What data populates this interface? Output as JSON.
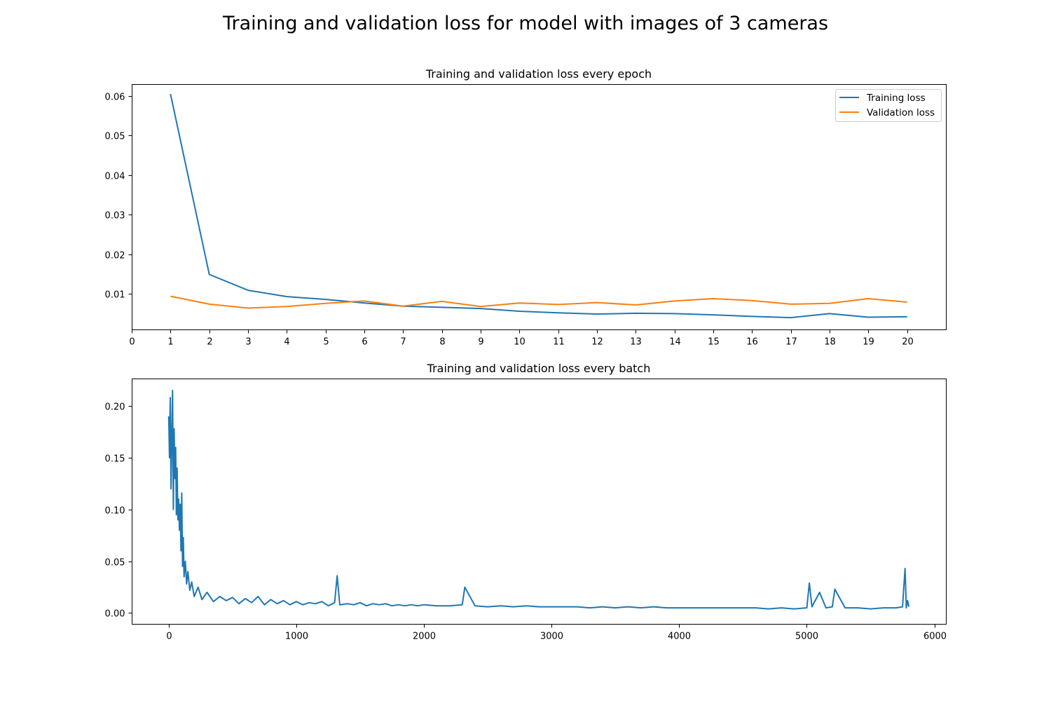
{
  "figure": {
    "title": "Training and validation loss for model with images of 3 cameras"
  },
  "chart_data": [
    {
      "type": "line",
      "title": "Training and validation loss every epoch",
      "xlabel": "",
      "ylabel": "",
      "xlim": [
        0,
        21
      ],
      "ylim": [
        0.001,
        0.063
      ],
      "xticks": [
        0,
        1,
        2,
        3,
        4,
        5,
        6,
        7,
        8,
        9,
        10,
        11,
        12,
        13,
        14,
        15,
        16,
        17,
        18,
        19,
        20
      ],
      "yticks": [
        0.01,
        0.02,
        0.03,
        0.04,
        0.05,
        0.06
      ],
      "ytick_labels": [
        "0.01",
        "0.02",
        "0.03",
        "0.04",
        "0.05",
        "0.06"
      ],
      "grid": false,
      "legend": "top-right",
      "x": [
        1,
        2,
        3,
        4,
        5,
        6,
        7,
        8,
        9,
        10,
        11,
        12,
        13,
        14,
        15,
        16,
        17,
        18,
        19,
        20
      ],
      "series": [
        {
          "name": "Training loss",
          "color": "#1f77b4",
          "values": [
            0.0605,
            0.0149,
            0.0109,
            0.0093,
            0.0086,
            0.0077,
            0.0069,
            0.0066,
            0.0063,
            0.0056,
            0.0052,
            0.0049,
            0.0051,
            0.005,
            0.0047,
            0.0043,
            0.004,
            0.005,
            0.0041,
            0.0042
          ]
        },
        {
          "name": "Validation loss",
          "color": "#ff7f0e",
          "values": [
            0.0094,
            0.0074,
            0.0064,
            0.0068,
            0.0076,
            0.0082,
            0.0069,
            0.0081,
            0.0068,
            0.0077,
            0.0073,
            0.0078,
            0.0072,
            0.0082,
            0.0088,
            0.0083,
            0.0074,
            0.0076,
            0.0088,
            0.0079
          ]
        }
      ]
    },
    {
      "type": "line",
      "title": "Training and validation loss every batch",
      "xlabel": "",
      "ylabel": "",
      "xlim": [
        -290,
        6090
      ],
      "ylim": [
        -0.0105,
        0.2265
      ],
      "xticks": [
        0,
        1000,
        2000,
        3000,
        4000,
        5000,
        6000
      ],
      "yticks": [
        0.0,
        0.05,
        0.1,
        0.15,
        0.2
      ],
      "ytick_labels": [
        "0.00",
        "0.05",
        "0.10",
        "0.15",
        "0.20"
      ],
      "grid": false,
      "legend": "none",
      "series": [
        {
          "color": "#1f77b4",
          "x": [
            0,
            6,
            12,
            18,
            24,
            30,
            36,
            42,
            48,
            54,
            60,
            66,
            72,
            78,
            84,
            90,
            96,
            102,
            108,
            114,
            120,
            130,
            140,
            150,
            165,
            180,
            200,
            230,
            260,
            300,
            350,
            400,
            450,
            500,
            550,
            600,
            650,
            700,
            750,
            800,
            850,
            900,
            950,
            1000,
            1050,
            1100,
            1150,
            1200,
            1250,
            1300,
            1320,
            1340,
            1400,
            1450,
            1500,
            1550,
            1600,
            1650,
            1700,
            1750,
            1800,
            1850,
            1900,
            1950,
            2000,
            2100,
            2200,
            2300,
            2320,
            2400,
            2500,
            2600,
            2700,
            2800,
            2900,
            3000,
            3100,
            3200,
            3300,
            3400,
            3500,
            3600,
            3700,
            3800,
            3900,
            4000,
            4100,
            4200,
            4300,
            4400,
            4500,
            4600,
            4700,
            4800,
            4900,
            5000,
            5020,
            5040,
            5100,
            5150,
            5200,
            5220,
            5300,
            5400,
            5500,
            5600,
            5700,
            5750,
            5770,
            5780,
            5790,
            5800
          ],
          "values": [
            0.19,
            0.15,
            0.208,
            0.12,
            0.17,
            0.215,
            0.1,
            0.178,
            0.13,
            0.16,
            0.095,
            0.14,
            0.09,
            0.11,
            0.08,
            0.105,
            0.06,
            0.116,
            0.045,
            0.073,
            0.035,
            0.05,
            0.028,
            0.04,
            0.022,
            0.03,
            0.016,
            0.025,
            0.013,
            0.02,
            0.011,
            0.016,
            0.012,
            0.015,
            0.009,
            0.014,
            0.01,
            0.016,
            0.008,
            0.013,
            0.009,
            0.012,
            0.008,
            0.011,
            0.008,
            0.01,
            0.009,
            0.011,
            0.007,
            0.01,
            0.036,
            0.008,
            0.009,
            0.008,
            0.01,
            0.007,
            0.009,
            0.008,
            0.009,
            0.007,
            0.008,
            0.007,
            0.008,
            0.007,
            0.008,
            0.007,
            0.007,
            0.008,
            0.025,
            0.007,
            0.006,
            0.007,
            0.006,
            0.007,
            0.006,
            0.006,
            0.006,
            0.006,
            0.005,
            0.006,
            0.005,
            0.006,
            0.005,
            0.006,
            0.005,
            0.005,
            0.005,
            0.005,
            0.005,
            0.005,
            0.005,
            0.005,
            0.004,
            0.005,
            0.004,
            0.005,
            0.029,
            0.006,
            0.02,
            0.005,
            0.006,
            0.023,
            0.005,
            0.005,
            0.004,
            0.005,
            0.005,
            0.006,
            0.043,
            0.005,
            0.012,
            0.006
          ]
        }
      ]
    }
  ]
}
